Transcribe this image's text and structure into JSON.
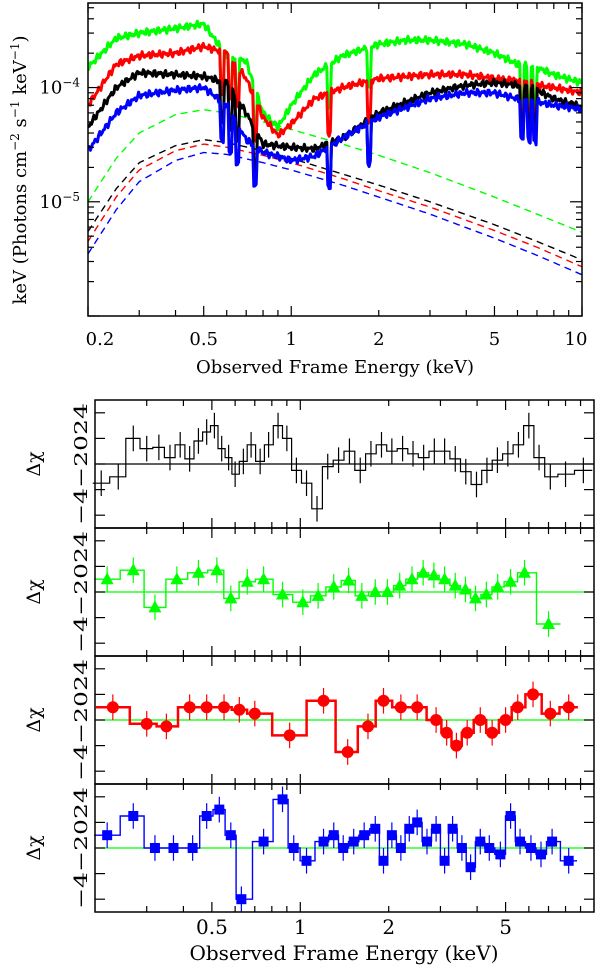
{
  "top": {
    "xlabel": "Observed Frame Energy (keV)",
    "ylabel_prefix": "keV (Photons cm",
    "ylabel_exp1": "−2",
    "ylabel_mid": " s",
    "ylabel_exp2": "−1",
    "ylabel_mid2": " keV",
    "ylabel_exp3": "−1",
    "ylabel_suffix": ")",
    "y_ticks": [
      {
        "base": "10",
        "exp": "−4"
      },
      {
        "base": "10",
        "exp": "−5"
      }
    ],
    "x_ticks": [
      "0.2",
      "0.5",
      "1",
      "2",
      "5",
      "10"
    ]
  },
  "residuals": {
    "xlabel": "Observed Frame Energy (keV)",
    "ylabel": "Δχ",
    "y_tick_labels": [
      "−4",
      "−2",
      "0",
      "2",
      "4"
    ],
    "x_ticks": [
      "0.5",
      "1",
      "2",
      "5"
    ]
  },
  "colors": {
    "black": "#000000",
    "green": "#00ff00",
    "red": "#ff0000",
    "blue": "#0000ff"
  },
  "chart_data": [
    {
      "type": "line",
      "title": "",
      "xlabel": "Observed Frame Energy (keV)",
      "ylabel": "keV (Photons cm^-2 s^-1 keV^-1)",
      "xscale": "log",
      "yscale": "log",
      "xlim": [
        0.2,
        10
      ],
      "ylim": [
        1e-06,
        0.00055
      ],
      "series": [
        {
          "name": "green model",
          "color": "#00ff00",
          "style": "solid",
          "x": [
            0.2,
            0.25,
            0.3,
            0.4,
            0.5,
            0.6,
            0.7,
            0.8,
            0.9,
            1.0,
            1.2,
            1.5,
            2.0,
            2.5,
            3.0,
            4.0,
            5.0,
            6.0,
            7.0,
            8.0,
            10.0
          ],
          "y": [
            0.00015,
            0.00027,
            0.0003,
            0.00033,
            0.00036,
            0.00019,
            0.00017,
            6e-05,
            4.5e-05,
            7e-05,
            0.00013,
            0.00019,
            0.00024,
            0.00026,
            0.00026,
            0.00024,
            0.0002,
            0.00016,
            0.00015,
            0.00013,
            0.00011
          ]
        },
        {
          "name": "red model",
          "color": "#ff0000",
          "style": "solid",
          "x": [
            0.2,
            0.25,
            0.3,
            0.4,
            0.5,
            0.6,
            0.7,
            0.8,
            0.9,
            1.0,
            1.2,
            1.5,
            2.0,
            3.0,
            4.0,
            5.0,
            6.0,
            7.0,
            8.0,
            10.0
          ],
          "y": [
            7e-05,
            0.00016,
            0.00019,
            0.0002,
            0.00023,
            0.0002,
            0.00012,
            5.5e-05,
            3.8e-05,
            4.8e-05,
            8e-05,
            0.0001,
            0.00012,
            0.00013,
            0.00013,
            0.00012,
            0.000115,
            0.000105,
            0.0001,
            9e-05
          ]
        },
        {
          "name": "black model",
          "color": "#000000",
          "style": "solid",
          "x": [
            0.2,
            0.25,
            0.3,
            0.4,
            0.5,
            0.6,
            0.7,
            0.8,
            1.0,
            1.2,
            1.5,
            2.0,
            3.0,
            4.0,
            5.0,
            6.0,
            7.0,
            8.0,
            10.0
          ],
          "y": [
            4.5e-05,
            0.0001,
            0.000135,
            0.00013,
            0.000125,
            0.00011,
            6e-05,
            3.2e-05,
            3e-05,
            2.9e-05,
            3.6e-05,
            6e-05,
            9e-05,
            0.000105,
            0.00011,
            0.000105,
            9.5e-05,
            8e-05,
            6.8e-05
          ]
        },
        {
          "name": "blue model",
          "color": "#0000ff",
          "style": "solid",
          "x": [
            0.2,
            0.25,
            0.3,
            0.4,
            0.5,
            0.6,
            0.7,
            0.8,
            0.9,
            1.0,
            1.2,
            1.5,
            2.0,
            3.0,
            4.0,
            5.0,
            6.0,
            7.0,
            8.0,
            10.0
          ],
          "y": [
            2.8e-05,
            6e-05,
            8.5e-05,
            9.5e-05,
            0.0001,
            7e-05,
            3.5e-05,
            2.7e-05,
            2.5e-05,
            2.3e-05,
            2.5e-05,
            3.6e-05,
            5.5e-05,
            8e-05,
            9e-05,
            9e-05,
            8e-05,
            7.5e-05,
            7e-05,
            6.5e-05
          ]
        },
        {
          "name": "green power law",
          "color": "#00ff00",
          "style": "dashed",
          "x": [
            0.2,
            0.25,
            0.3,
            0.4,
            0.5,
            0.6,
            0.8,
            1.0,
            1.5,
            2.0,
            3.0,
            5.0,
            7.0,
            10.0
          ],
          "y": [
            1e-05,
            2.4e-05,
            4e-05,
            5.8e-05,
            6.4e-05,
            6e-05,
            5e-05,
            4.3e-05,
            3.2e-05,
            2.55e-05,
            1.8e-05,
            1.1e-05,
            7.8e-06,
            5.4e-06
          ]
        },
        {
          "name": "black power law",
          "color": "#000000",
          "style": "dashed",
          "x": [
            0.2,
            0.25,
            0.3,
            0.4,
            0.5,
            0.6,
            0.8,
            1.0,
            1.5,
            2.0,
            3.0,
            5.0,
            7.0,
            10.0
          ],
          "y": [
            5.5e-06,
            1.3e-05,
            2.2e-05,
            3.1e-05,
            3.5e-05,
            3.3e-05,
            2.8e-05,
            2.4e-05,
            1.75e-05,
            1.4e-05,
            1e-05,
            6.3e-06,
            4.5e-06,
            3.1e-06
          ]
        },
        {
          "name": "red power law",
          "color": "#ff0000",
          "style": "dashed",
          "x": [
            0.2,
            0.25,
            0.3,
            0.4,
            0.5,
            0.6,
            0.8,
            1.0,
            1.5,
            2.0,
            3.0,
            5.0,
            7.0,
            10.0
          ],
          "y": [
            4.5e-06,
            1.1e-05,
            1.9e-05,
            2.8e-05,
            3.2e-05,
            3e-05,
            2.55e-05,
            2.2e-05,
            1.6e-05,
            1.25e-05,
            9e-06,
            5.6e-06,
            4e-06,
            2.7e-06
          ]
        },
        {
          "name": "blue power law",
          "color": "#0000ff",
          "style": "dashed",
          "x": [
            0.2,
            0.25,
            0.3,
            0.4,
            0.5,
            0.6,
            0.8,
            1.0,
            1.5,
            2.0,
            3.0,
            5.0,
            7.0,
            10.0
          ],
          "y": [
            3.5e-06,
            8.5e-06,
            1.5e-05,
            2.3e-05,
            2.7e-05,
            2.6e-05,
            2.2e-05,
            1.9e-05,
            1.4e-05,
            1.1e-05,
            7.8e-06,
            4.8e-06,
            3.4e-06,
            2.3e-06
          ]
        }
      ],
      "absorption_lines_keV": [
        0.58,
        0.62,
        0.65,
        0.75,
        1.35,
        1.85,
        6.2,
        6.6,
        6.9
      ]
    },
    {
      "type": "scatter",
      "title": "",
      "xlabel": "Observed Frame Energy (keV)",
      "ylabel": "Δχ",
      "xscale": "log",
      "xlim": [
        0.2,
        10
      ],
      "ylim": [
        -5,
        5
      ],
      "panels": [
        {
          "name": "black residuals",
          "color": "#000000",
          "marker": "none",
          "x": [
            0.21,
            0.24,
            0.27,
            0.3,
            0.33,
            0.36,
            0.39,
            0.42,
            0.45,
            0.48,
            0.51,
            0.54,
            0.57,
            0.6,
            0.64,
            0.68,
            0.73,
            0.78,
            0.84,
            0.9,
            0.97,
            1.05,
            1.14,
            1.24,
            1.35,
            1.47,
            1.6,
            1.74,
            1.89,
            2.05,
            2.23,
            2.42,
            2.63,
            2.86,
            3.1,
            3.37,
            3.66,
            3.98,
            4.32,
            4.69,
            5.09,
            5.53,
            6.0,
            6.5,
            7.1,
            8.0,
            9.2
          ],
          "y": [
            -1.5,
            -1.0,
            2.0,
            1.2,
            1.3,
            0.5,
            1.5,
            0.4,
            1.8,
            2.5,
            3.0,
            1.2,
            0.5,
            -0.8,
            0.2,
            1.5,
            0.2,
            1.5,
            3.0,
            2.0,
            -0.5,
            -1.5,
            -3.5,
            -0.2,
            0.3,
            1.0,
            -0.5,
            0.8,
            1.5,
            1.0,
            1.2,
            0.8,
            0.5,
            1.0,
            1.0,
            0.4,
            -0.6,
            -1.6,
            -0.5,
            0.3,
            0.8,
            1.5,
            3.0,
            0.5,
            -1.0,
            -0.8,
            -0.5
          ],
          "err": 1.0
        },
        {
          "name": "green residuals",
          "color": "#00ff00",
          "marker": "triangle",
          "x": [
            0.22,
            0.27,
            0.32,
            0.38,
            0.45,
            0.52,
            0.58,
            0.66,
            0.75,
            0.87,
            1.02,
            1.15,
            1.3,
            1.46,
            1.62,
            1.8,
            1.98,
            2.18,
            2.4,
            2.62,
            2.85,
            3.1,
            3.37,
            3.65,
            3.95,
            4.3,
            4.7,
            5.2,
            5.8,
            7.0
          ],
          "y": [
            1.0,
            1.7,
            -1.2,
            1.0,
            1.5,
            1.7,
            -0.5,
            0.8,
            1.0,
            -0.2,
            -0.8,
            -0.3,
            0.4,
            0.9,
            -0.3,
            0.0,
            0.0,
            0.5,
            1.0,
            1.5,
            1.3,
            1.0,
            0.5,
            0.2,
            -0.5,
            -0.2,
            0.4,
            0.8,
            1.5,
            -2.5
          ],
          "err": 1.0
        },
        {
          "name": "red residuals",
          "color": "#ff0000",
          "marker": "circle",
          "x": [
            0.23,
            0.3,
            0.35,
            0.42,
            0.48,
            0.55,
            0.62,
            0.7,
            0.92,
            1.2,
            1.45,
            1.7,
            1.92,
            2.2,
            2.5,
            2.9,
            3.15,
            3.4,
            3.7,
            4.1,
            4.5,
            5.0,
            5.5,
            6.2,
            7.1,
            8.2
          ],
          "y": [
            1.0,
            -0.3,
            -0.5,
            1.0,
            1.0,
            1.0,
            0.8,
            0.5,
            -1.2,
            1.5,
            -2.5,
            -0.5,
            1.5,
            1.0,
            1.0,
            0.0,
            -1.0,
            -2.0,
            -1.0,
            0.0,
            -1.0,
            0.0,
            1.0,
            2.0,
            0.5,
            1.0
          ],
          "err": 1.0
        },
        {
          "name": "blue residuals",
          "color": "#0000ff",
          "marker": "square",
          "x": [
            0.22,
            0.27,
            0.32,
            0.37,
            0.43,
            0.48,
            0.53,
            0.58,
            0.63,
            0.75,
            0.87,
            0.95,
            1.05,
            1.2,
            1.3,
            1.4,
            1.52,
            1.65,
            1.8,
            1.92,
            2.05,
            2.2,
            2.35,
            2.5,
            2.7,
            2.9,
            3.1,
            3.3,
            3.55,
            3.8,
            4.1,
            4.4,
            4.8,
            5.2,
            5.6,
            6.1,
            6.6,
            7.2,
            8.2
          ],
          "y": [
            1.0,
            2.5,
            0.0,
            0.0,
            0.0,
            2.5,
            3.0,
            1.0,
            -4.0,
            0.5,
            3.8,
            0.0,
            -1.0,
            0.5,
            1.0,
            0.0,
            0.5,
            1.0,
            1.5,
            -1.0,
            1.0,
            0.0,
            1.5,
            2.0,
            0.5,
            1.5,
            -1.0,
            1.5,
            0.0,
            -1.5,
            0.5,
            0.0,
            -0.5,
            2.5,
            0.5,
            0.0,
            -0.5,
            0.5,
            -1.0
          ],
          "err": 1.0
        }
      ],
      "reference_lines": [
        {
          "panel": 0,
          "y": 0,
          "color": "#000000"
        },
        {
          "panel": 1,
          "y": 0,
          "color": "#00ff00"
        },
        {
          "panel": 2,
          "y": 0,
          "color": "#00ff00"
        },
        {
          "panel": 3,
          "y": 0,
          "color": "#00ff00"
        }
      ]
    }
  ]
}
